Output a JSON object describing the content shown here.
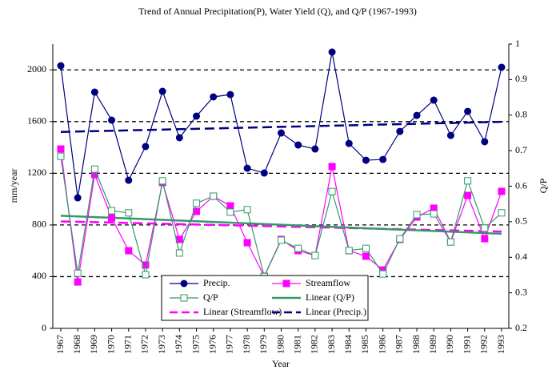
{
  "chart_data": {
    "type": "line",
    "title": "Trend of Annual Precipitation(P), Water Yield (Q), and Q/P (1967-1993)",
    "x_label": "Year",
    "y_label": "mm/year",
    "y2_label": "Q/P",
    "categories": [
      "1967",
      "1968",
      "1969",
      "1970",
      "1971",
      "1972",
      "1973",
      "1974",
      "1975",
      "1976",
      "1977",
      "1978",
      "1979",
      "1980",
      "1981",
      "1982",
      "1983",
      "1984",
      "1985",
      "1986",
      "1987",
      "1988",
      "1989",
      "1990",
      "1991",
      "1992",
      "1993"
    ],
    "ylim": [
      0,
      2200
    ],
    "yticks": [
      0,
      400,
      800,
      1200,
      1600,
      2000
    ],
    "y2lim": [
      0.2,
      1
    ],
    "y2ticks": [
      0.2,
      0.3,
      0.4,
      0.5,
      0.6,
      0.7,
      0.8,
      0.9,
      1
    ],
    "grid": true,
    "series": [
      {
        "name": "Precip.",
        "color": "#000080",
        "marker": "circle",
        "values": [
          2032,
          1010,
          1828,
          1611,
          1146,
          1407,
          1834,
          1475,
          1642,
          1791,
          1809,
          1239,
          1202,
          1512,
          1419,
          1388,
          2138,
          1431,
          1301,
          1307,
          1524,
          1648,
          1766,
          1493,
          1679,
          1444,
          2020
        ],
        "trendline": {
          "name": "Linear (Precip.)",
          "color": "#000080",
          "dash": true
        }
      },
      {
        "name": "Streamflow",
        "color": "#ff00ff",
        "marker": "square",
        "values": [
          1388,
          359,
          1190,
          855,
          601,
          490,
          1128,
          688,
          905,
          1022,
          948,
          663,
          403,
          688,
          601,
          564,
          1252,
          601,
          558,
          452,
          688,
          861,
          930,
          669,
          1029,
          694,
          1060
        ],
        "trendline": {
          "name": "Linear (Streamflow)",
          "color": "#ff00ff",
          "dash": true
        }
      },
      {
        "name": "Q/P",
        "color": "#339966",
        "marker": "open-square",
        "axis": "y2",
        "values": [
          0.684,
          0.355,
          0.648,
          0.531,
          0.525,
          0.351,
          0.615,
          0.412,
          0.552,
          0.572,
          0.527,
          0.534,
          0.346,
          0.448,
          0.425,
          0.405,
          0.585,
          0.419,
          0.425,
          0.353,
          0.452,
          0.52,
          0.522,
          0.443,
          0.615,
          0.482,
          0.525
        ],
        "trendline": {
          "name": "Linear (Q/P)",
          "color": "#339966",
          "dash": false
        }
      }
    ]
  }
}
